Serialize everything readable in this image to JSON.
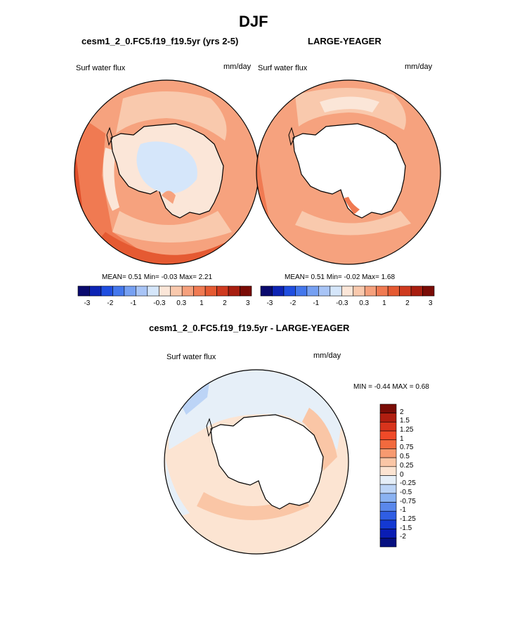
{
  "title": "DJF",
  "left_panel": {
    "header": "cesm1_2_0.FC5.f19_f19.5yr (yrs 2-5)",
    "label": "Surf water flux",
    "units": "mm/day",
    "stats": {
      "mean_label": "MEAN=",
      "mean": "0.51",
      "min_label": "Min=",
      "min": "-0.03",
      "max_label": "Max=",
      "max": "2.21"
    }
  },
  "right_panel": {
    "header": "LARGE-YEAGER",
    "label": "Surf water flux",
    "units": "mm/day",
    "stats": {
      "mean_label": "MEAN=",
      "mean": "0.51",
      "min_label": "Min=",
      "min": "-0.02",
      "max_label": "Max=",
      "max": "1.68"
    }
  },
  "top_colorbar": {
    "colors": [
      "#0a0a6e",
      "#0d24b4",
      "#1f4ee0",
      "#4477ec",
      "#76a0f2",
      "#a8c4f6",
      "#d5e6fa",
      "#fbe6d8",
      "#f9c9ad",
      "#f5a07c",
      "#f07a52",
      "#e55a32",
      "#cf3a1f",
      "#a81e10",
      "#7a0c06"
    ],
    "ticks": [
      "-3",
      "-2",
      "-1",
      "-0.3",
      "0.3",
      "1",
      "2",
      "3"
    ]
  },
  "diff_panel": {
    "header": "cesm1_2_0.FC5.f19_f19.5yr - LARGE-YEAGER",
    "label": "Surf water flux",
    "units": "mm/day",
    "minmax": "MIN =  -0.44 MAX =   0.68"
  },
  "diff_colorbar": {
    "colors": [
      "#7a0c06",
      "#b01e10",
      "#d8341c",
      "#f04a28",
      "#f26a3e",
      "#f79a70",
      "#fac6a6",
      "#fce4d2",
      "#e6eff8",
      "#bcd4f6",
      "#8ab2f2",
      "#5a88ec",
      "#2f5ee4",
      "#1439d2",
      "#0a1db4",
      "#061080"
    ],
    "labels": [
      "2",
      "1.5",
      "1.25",
      "1",
      "0.75",
      "0.5",
      "0.25",
      "0",
      "-0.25",
      "-0.5",
      "-0.75",
      "-1",
      "-1.25",
      "-1.5",
      "-2"
    ]
  }
}
